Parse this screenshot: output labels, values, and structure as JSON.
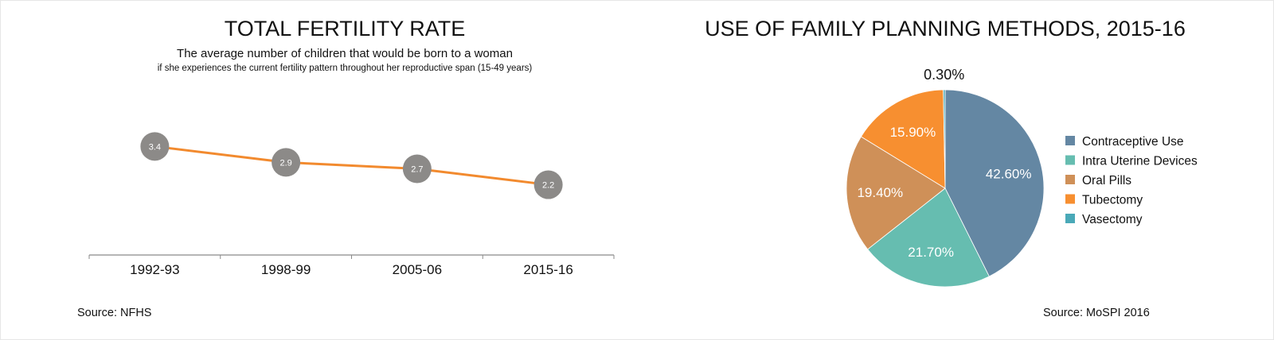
{
  "chart_data": [
    {
      "type": "line",
      "title": "TOTAL FERTILITY RATE",
      "subtitle": "The average number of children that would be born to a woman",
      "subtitle_note": "if she experiences the current fertility pattern throughout her reproductive span (15-49 years)",
      "categories": [
        "1992-93",
        "1998-99",
        "2005-06",
        "2015-16"
      ],
      "series": [
        {
          "values": [
            3.4,
            2.9,
            2.7,
            2.2
          ],
          "color": "#f28a2e",
          "marker_color": "#8c8a88"
        }
      ],
      "data_labels": [
        "3.4",
        "2.9",
        "2.7",
        "2.2"
      ],
      "ylim": [
        0,
        5
      ],
      "grid": false,
      "source": "Source: NFHS"
    },
    {
      "type": "pie",
      "title": "USE OF FAMILY PLANNING METHODS, 2015-16",
      "slices": [
        {
          "label": "Contraceptive Use",
          "value": 42.6,
          "display": "42.60%",
          "color": "#6487a3"
        },
        {
          "label": "Intra Uterine Devices",
          "value": 21.7,
          "display": "21.70%",
          "color": "#66bdb0"
        },
        {
          "label": "Oral Pills",
          "value": 19.4,
          "display": "19.40%",
          "color": "#cf9058"
        },
        {
          "label": "Tubectomy",
          "value": 15.9,
          "display": "15.90%",
          "color": "#f78f30"
        },
        {
          "label": "Vasectomy",
          "value": 0.3,
          "display": "0.30%",
          "color": "#4aa9b8"
        }
      ],
      "legend_position": "right",
      "source": "Source: MoSPI 2016"
    }
  ]
}
